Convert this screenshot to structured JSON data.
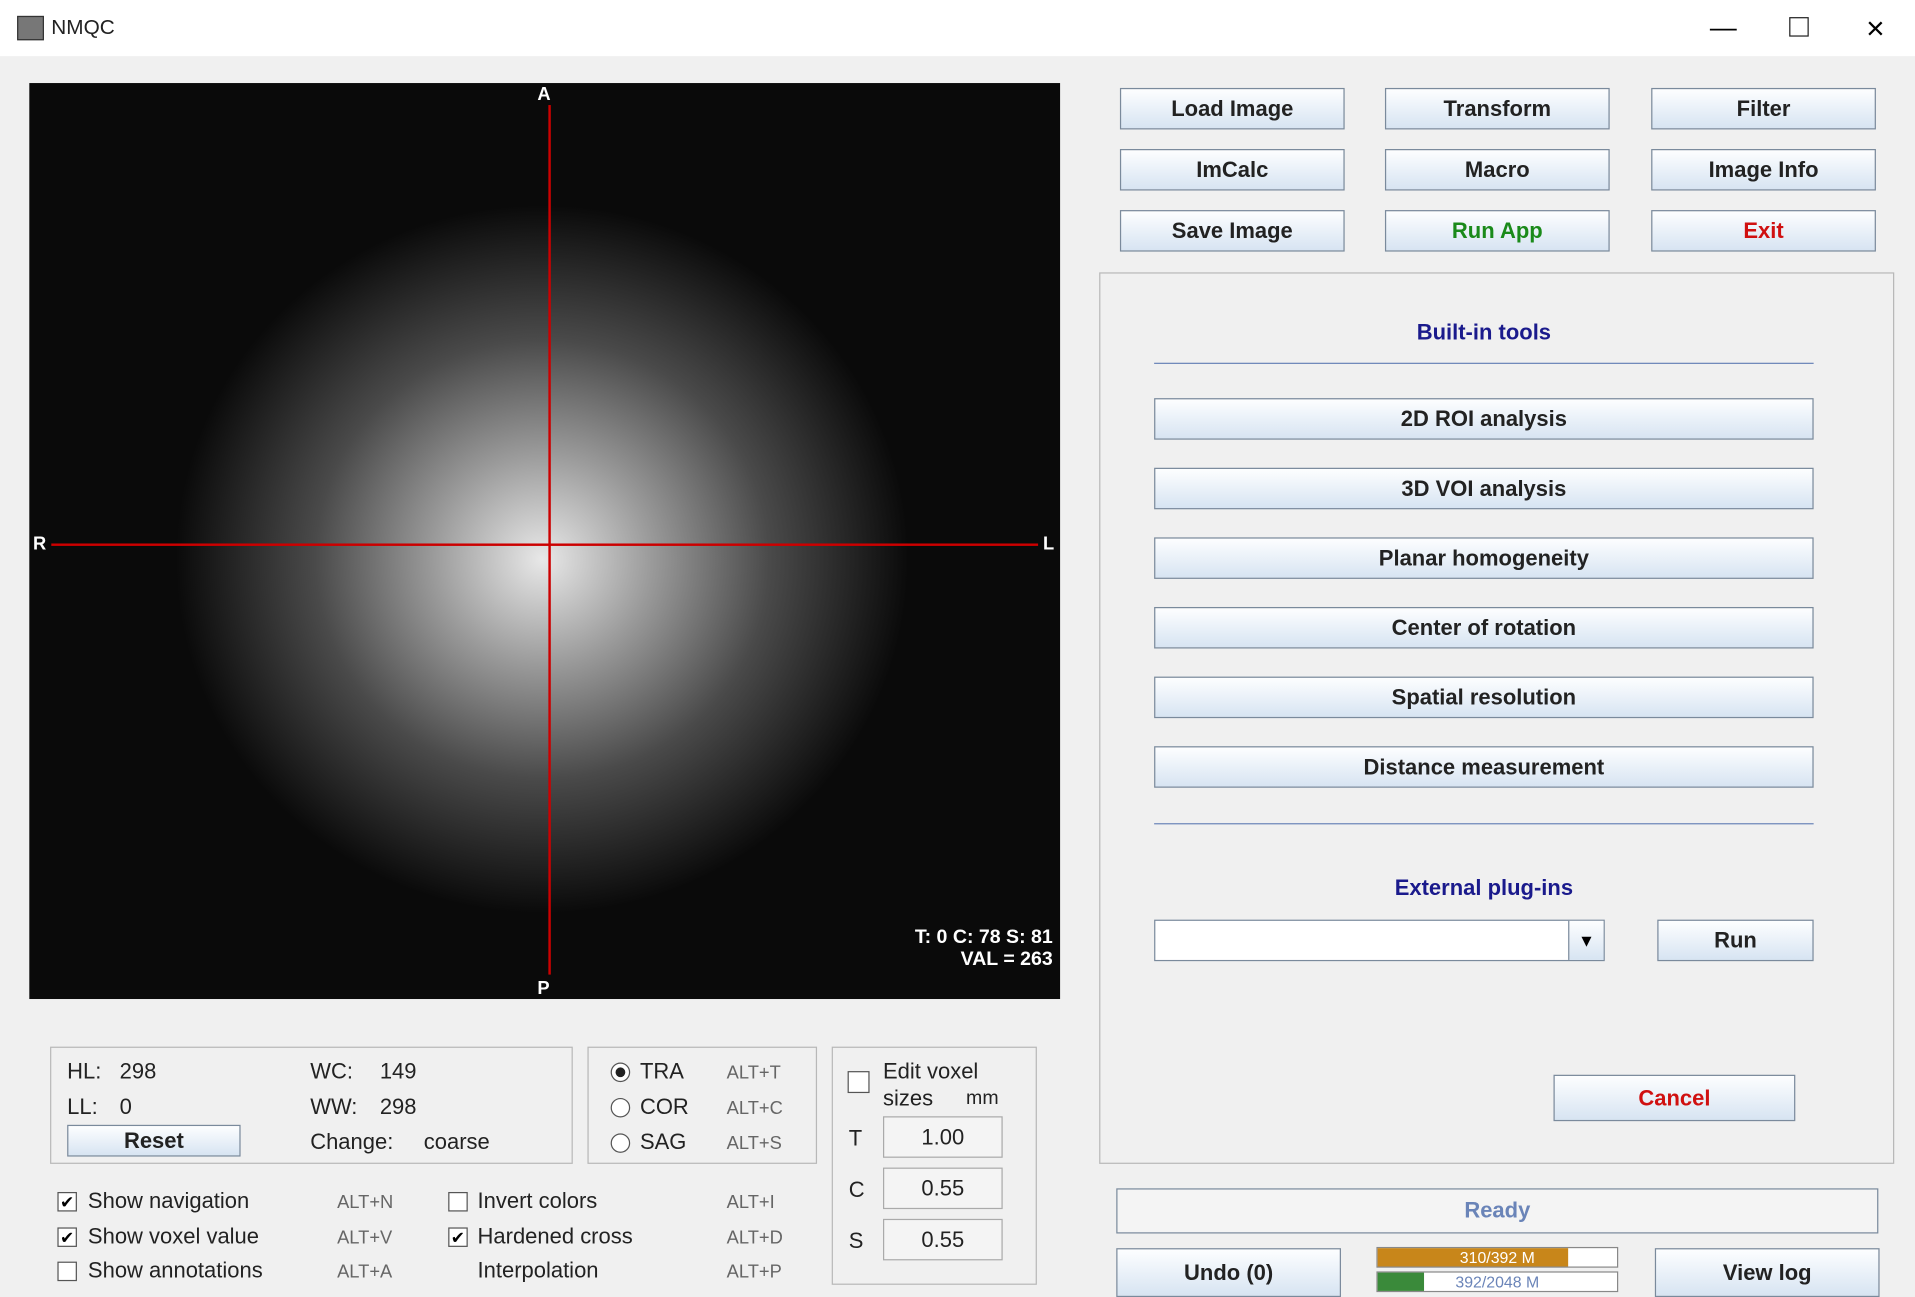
{
  "window": {
    "title": "NMQC"
  },
  "viewer": {
    "top": "A",
    "left": "R",
    "right": "L",
    "bottom": "P",
    "info": [
      "T: 0 C: 78 S: 81",
      "VAL = 263"
    ]
  },
  "toolbar": {
    "buttons": [
      "Load Image",
      "Transform",
      "Filter",
      "ImCalc",
      "Macro",
      "Image Info",
      "Save Image",
      "Run App",
      "Exit"
    ]
  },
  "tools": {
    "heading": "Built-in tools",
    "buttons": [
      "2D ROI analysis",
      "3D VOI analysis",
      "Planar homogeneity",
      "Center of rotation",
      "Spatial resolution",
      "Distance measurement"
    ],
    "plugins_heading": "External plug-ins",
    "run": "Run",
    "cancel": "Cancel"
  },
  "window_level": {
    "hl_label": "HL:",
    "hl": 298,
    "ll_label": "LL:",
    "ll": 0,
    "wc_label": "WC:",
    "wc": 149,
    "ww_label": "WW:",
    "ww": 298,
    "change_label": "Change:",
    "change": "coarse",
    "reset": "Reset"
  },
  "orientation": {
    "options": [
      {
        "label": "TRA",
        "shortcut": "ALT+T",
        "selected": true
      },
      {
        "label": "COR",
        "shortcut": "ALT+C",
        "selected": false
      },
      {
        "label": "SAG",
        "shortcut": "ALT+S",
        "selected": false
      }
    ]
  },
  "voxel": {
    "label_1": "Edit voxel",
    "label_2": "sizes",
    "unit": "mm",
    "checked": false,
    "rows": [
      {
        "axis": "T",
        "value": "1.00"
      },
      {
        "axis": "C",
        "value": "0.55"
      },
      {
        "axis": "S",
        "value": "0.55"
      }
    ]
  },
  "options": [
    {
      "label": "Show navigation",
      "shortcut": "ALT+N",
      "checked": true
    },
    {
      "label": "Show voxel value",
      "shortcut": "ALT+V",
      "checked": true
    },
    {
      "label": "Show annotations",
      "shortcut": "ALT+A",
      "checked": false
    },
    {
      "label": "Invert colors",
      "shortcut": "ALT+I",
      "checked": false
    },
    {
      "label": "Hardened cross",
      "shortcut": "ALT+D",
      "checked": true
    },
    {
      "label": "Interpolation",
      "shortcut": "ALT+P",
      "checked": null
    }
  ],
  "status": {
    "message": "Ready",
    "undo": "Undo (0)",
    "memory": [
      "310/392 M",
      "392/2048 M"
    ],
    "view_log": "View log"
  }
}
